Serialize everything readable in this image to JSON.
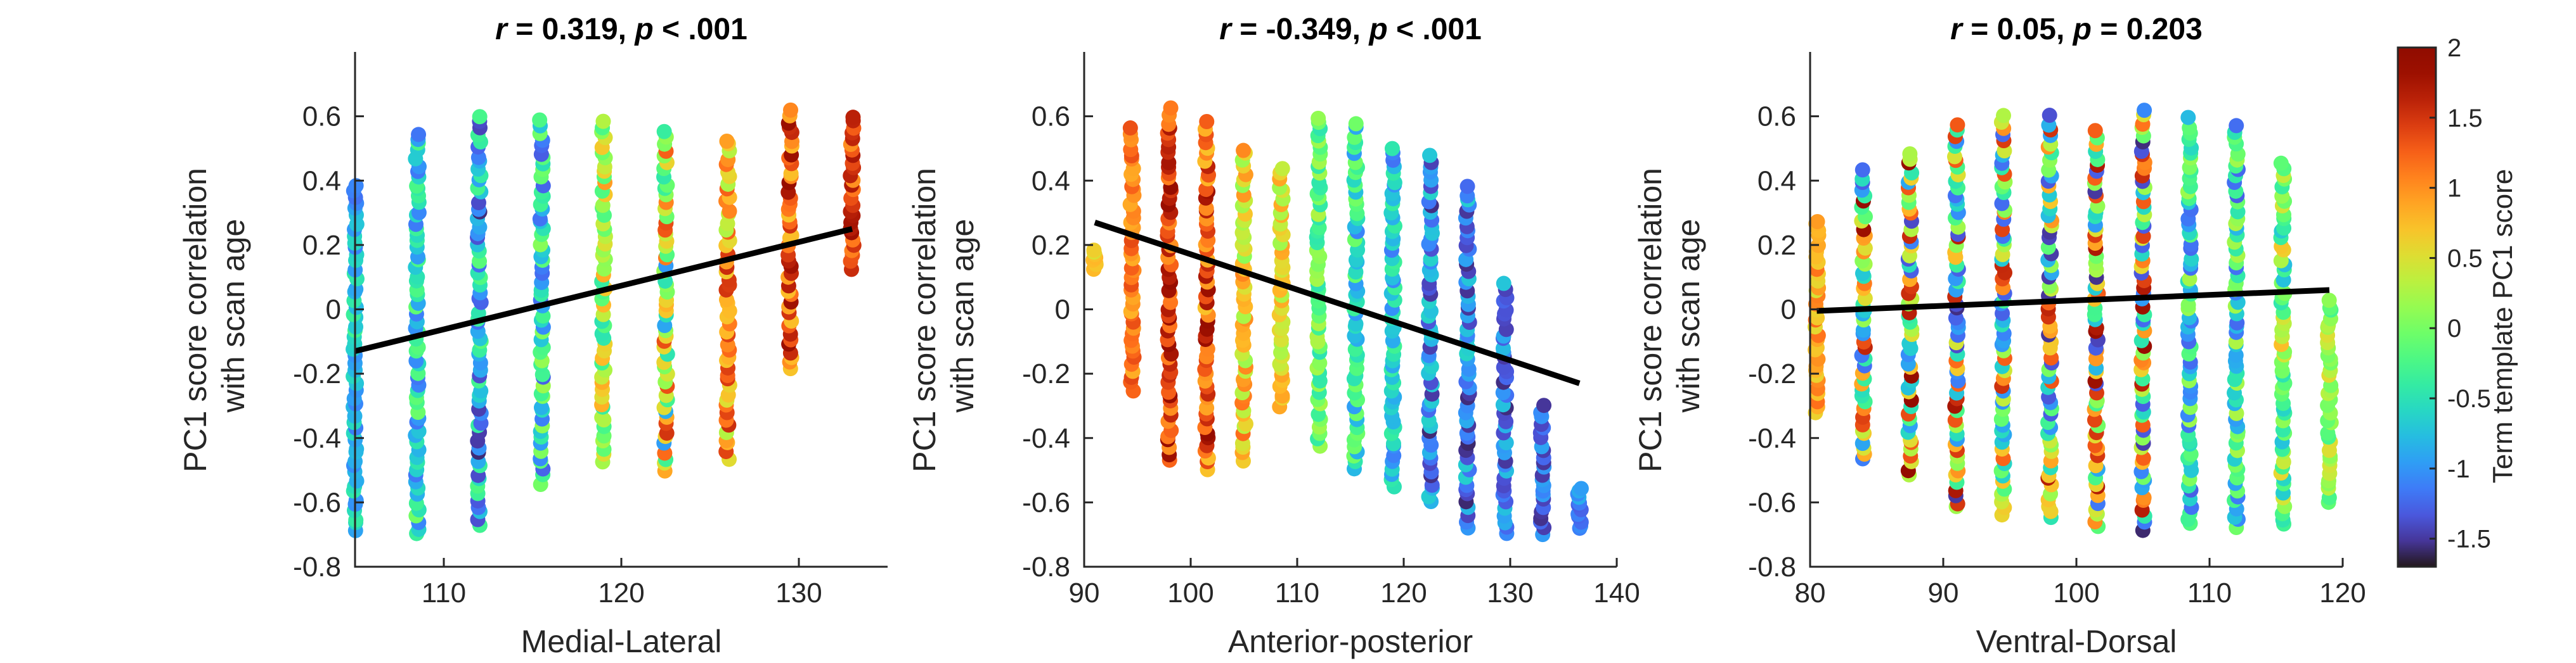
{
  "chart_data": [
    {
      "type": "scatter",
      "title_parts": {
        "r_sym": "r",
        "r_val": " = 0.319, ",
        "p_sym": "p",
        "p_val": " < .001"
      },
      "xlabel": "Medial-Lateral",
      "ylabel_lines": [
        "PC1 score correlation",
        "with scan age"
      ],
      "xlim": [
        105,
        135
      ],
      "ylim": [
        -0.8,
        0.8
      ],
      "xticks": [
        110,
        120,
        130
      ],
      "yticks": [
        -0.8,
        -0.6,
        -0.4,
        -0.2,
        0,
        0.2,
        0.4,
        0.6
      ],
      "ytick_labels": [
        "-0.8",
        "-0.6",
        "-0.4",
        "-0.2",
        "0",
        "0.2",
        "0.4",
        "0.6"
      ],
      "fit_line": {
        "x": [
          105,
          133
        ],
        "y": [
          -0.13,
          0.25
        ]
      },
      "columns": [
        {
          "x": 105,
          "y_min": -0.69,
          "y_max": 0.39,
          "c_min": -1.2,
          "c_max": -0.3
        },
        {
          "x": 108.5,
          "y_min": -0.7,
          "y_max": 0.55,
          "c_min": -1.2,
          "c_max": 0.0
        },
        {
          "x": 112,
          "y_min": -0.67,
          "y_max": 0.6,
          "c_min": -1.6,
          "c_max": -0.1
        },
        {
          "x": 115.5,
          "y_min": -0.54,
          "y_max": 0.59,
          "c_min": -1.3,
          "c_max": 0.2
        },
        {
          "x": 119,
          "y_min": -0.47,
          "y_max": 0.59,
          "c_min": -0.5,
          "c_max": 1.0
        },
        {
          "x": 122.5,
          "y_min": -0.5,
          "y_max": 0.55,
          "c_min": -1.0,
          "c_max": 1.5
        },
        {
          "x": 126,
          "y_min": -0.46,
          "y_max": 0.53,
          "c_min": 0.2,
          "c_max": 1.6
        },
        {
          "x": 129.5,
          "y_min": -0.19,
          "y_max": 0.62,
          "c_min": 0.7,
          "c_max": 1.9
        },
        {
          "x": 133,
          "y_min": 0.13,
          "y_max": 0.6,
          "c_min": 1.0,
          "c_max": 1.8
        }
      ]
    },
    {
      "type": "scatter",
      "title_parts": {
        "r_sym": "r",
        "r_val": " = -0.349, ",
        "p_sym": "p",
        "p_val": " < .001"
      },
      "xlabel": "Anterior-posterior",
      "ylabel_lines": [
        "PC1 score correlation",
        "with scan age"
      ],
      "xlim": [
        90,
        140
      ],
      "ylim": [
        -0.8,
        0.8
      ],
      "xticks": [
        90,
        100,
        110,
        120,
        130,
        140
      ],
      "yticks": [
        -0.8,
        -0.6,
        -0.4,
        -0.2,
        0,
        0.2,
        0.4,
        0.6
      ],
      "ytick_labels": [
        "-0.8",
        "-0.6",
        "-0.4",
        "-0.2",
        "0",
        "0.2",
        "0.4",
        "0.6"
      ],
      "fit_line": {
        "x": [
          91,
          136.5
        ],
        "y": [
          0.27,
          -0.23
        ]
      },
      "columns": [
        {
          "x": 91,
          "y_min": 0.12,
          "y_max": 0.19,
          "c_min": 0.5,
          "c_max": 0.8
        },
        {
          "x": 94.5,
          "y_min": -0.25,
          "y_max": 0.56,
          "c_min": 0.8,
          "c_max": 1.4
        },
        {
          "x": 98,
          "y_min": -0.47,
          "y_max": 0.62,
          "c_min": 1.0,
          "c_max": 1.9
        },
        {
          "x": 101.5,
          "y_min": -0.5,
          "y_max": 0.58,
          "c_min": 0.7,
          "c_max": 1.9
        },
        {
          "x": 105,
          "y_min": -0.47,
          "y_max": 0.5,
          "c_min": 0.1,
          "c_max": 1.2
        },
        {
          "x": 108.5,
          "y_min": -0.3,
          "y_max": 0.44,
          "c_min": 0.2,
          "c_max": 0.9
        },
        {
          "x": 112,
          "y_min": -0.42,
          "y_max": 0.6,
          "c_min": -0.5,
          "c_max": 0.3
        },
        {
          "x": 115.5,
          "y_min": -0.5,
          "y_max": 0.58,
          "c_min": -1.1,
          "c_max": 0.0
        },
        {
          "x": 119,
          "y_min": -0.55,
          "y_max": 0.5,
          "c_min": -1.2,
          "c_max": -0.3
        },
        {
          "x": 122.5,
          "y_min": -0.6,
          "y_max": 0.48,
          "c_min": -1.6,
          "c_max": -0.6
        },
        {
          "x": 126,
          "y_min": -0.68,
          "y_max": 0.38,
          "c_min": -1.6,
          "c_max": -0.6
        },
        {
          "x": 129.5,
          "y_min": -0.7,
          "y_max": 0.08,
          "c_min": -1.6,
          "c_max": -0.7
        },
        {
          "x": 133,
          "y_min": -0.7,
          "y_max": -0.3,
          "c_min": -1.6,
          "c_max": -0.9
        },
        {
          "x": 136.5,
          "y_min": -0.68,
          "y_max": -0.55,
          "c_min": -1.3,
          "c_max": -0.8
        }
      ]
    },
    {
      "type": "scatter",
      "title_parts": {
        "r_sym": "r",
        "r_val": " = 0.05, ",
        "p_sym": "p",
        "p_val": " = 0.203"
      },
      "xlabel": "Ventral-Dorsal",
      "ylabel_lines": [
        "PC1 score correlation",
        "with scan age"
      ],
      "xlim": [
        80,
        120
      ],
      "ylim": [
        -0.8,
        0.8
      ],
      "xticks": [
        80,
        90,
        100,
        110,
        120
      ],
      "yticks": [
        -0.8,
        -0.6,
        -0.4,
        -0.2,
        0,
        0.2,
        0.4,
        0.6
      ],
      "ytick_labels": [
        "-0.8",
        "-0.6",
        "-0.4",
        "-0.2",
        "0",
        "0.2",
        "0.4",
        "0.6"
      ],
      "fit_line": {
        "x": [
          80.5,
          119
        ],
        "y": [
          -0.005,
          0.06
        ]
      },
      "columns": [
        {
          "x": 80.5,
          "y_min": -0.32,
          "y_max": 0.28,
          "c_min": 0.4,
          "c_max": 1.2
        },
        {
          "x": 84,
          "y_min": -0.47,
          "y_max": 0.43,
          "c_min": -1.3,
          "c_max": 1.9
        },
        {
          "x": 87.5,
          "y_min": -0.52,
          "y_max": 0.49,
          "c_min": -1.5,
          "c_max": 1.9
        },
        {
          "x": 91,
          "y_min": -0.62,
          "y_max": 0.58,
          "c_min": -1.6,
          "c_max": 1.8
        },
        {
          "x": 94.5,
          "y_min": -0.64,
          "y_max": 0.6,
          "c_min": -1.3,
          "c_max": 1.6
        },
        {
          "x": 98,
          "y_min": -0.65,
          "y_max": 0.6,
          "c_min": -1.6,
          "c_max": 1.9
        },
        {
          "x": 101.5,
          "y_min": -0.68,
          "y_max": 0.55,
          "c_min": -1.6,
          "c_max": 1.9
        },
        {
          "x": 105,
          "y_min": -0.68,
          "y_max": 0.62,
          "c_min": -1.6,
          "c_max": 1.9
        },
        {
          "x": 108.5,
          "y_min": -0.67,
          "y_max": 0.59,
          "c_min": -1.3,
          "c_max": 0.3
        },
        {
          "x": 112,
          "y_min": -0.68,
          "y_max": 0.57,
          "c_min": -1.3,
          "c_max": 0.3
        },
        {
          "x": 115.5,
          "y_min": -0.67,
          "y_max": 0.46,
          "c_min": -0.8,
          "c_max": 0.8
        },
        {
          "x": 119,
          "y_min": -0.6,
          "y_max": 0.03,
          "c_min": -0.3,
          "c_max": 0.6
        }
      ]
    }
  ],
  "colorbar": {
    "title": "Term template PC1 score",
    "range": [
      -1.7,
      2.0
    ],
    "ticks": [
      2,
      1.5,
      1,
      0.5,
      0,
      -0.5,
      -1,
      -1.5
    ],
    "tick_labels": [
      "2",
      "1.5",
      "1",
      "0.5",
      "0",
      "-0.5",
      "-1",
      "-1.5"
    ],
    "colormap": "turbo"
  }
}
